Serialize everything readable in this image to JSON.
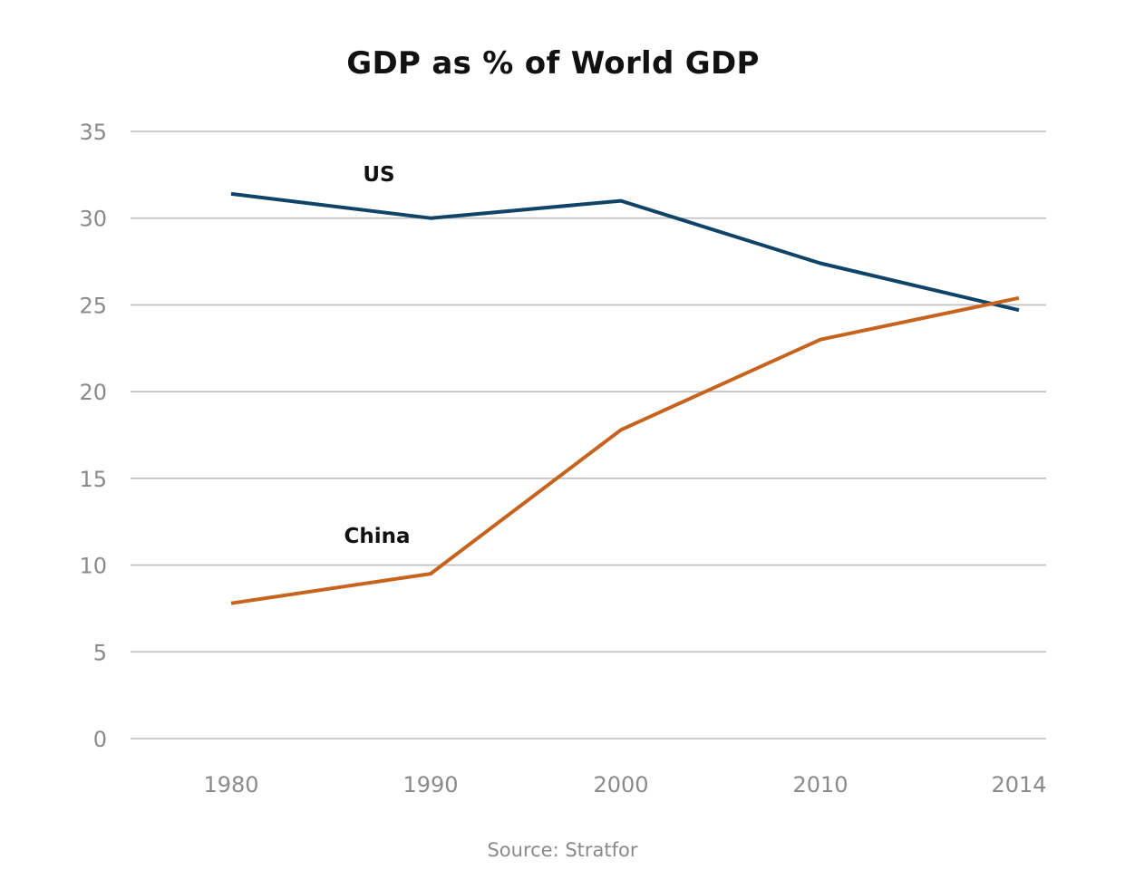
{
  "chart_data": {
    "type": "line",
    "title": "GDP as % of World GDP",
    "xlabel": "",
    "ylabel": "",
    "categories": [
      "1980",
      "1990",
      "2000",
      "2010",
      "2014"
    ],
    "ylim": [
      0,
      35
    ],
    "yticks": [
      0,
      5,
      10,
      15,
      20,
      25,
      30,
      35
    ],
    "grid": true,
    "legend": "none (inline series labels)",
    "series": [
      {
        "name": "US",
        "color": "#0f4468",
        "values": [
          31.4,
          30.0,
          31.0,
          27.4,
          24.7
        ]
      },
      {
        "name": "China",
        "color": "#c8631e",
        "values": [
          7.8,
          9.5,
          17.8,
          23.0,
          25.4
        ]
      }
    ],
    "annotations": [
      {
        "text": "US",
        "series": "US"
      },
      {
        "text": "China",
        "series": "China"
      }
    ],
    "source": "Source: Stratfor"
  }
}
